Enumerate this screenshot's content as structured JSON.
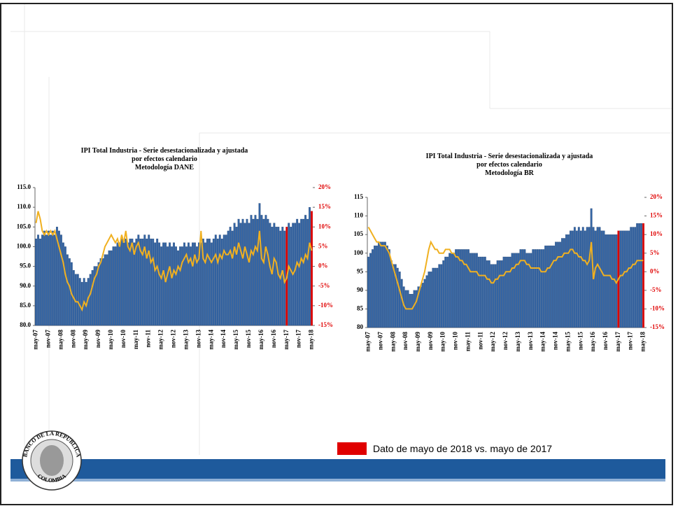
{
  "chart_data": [
    {
      "type": "bar",
      "title": [
        "IPI Total Industria - Serie desestacionalizada y ajustada",
        "por efectos calendario",
        "Metodología DANE"
      ],
      "categories": [
        "may-07",
        null,
        null,
        null,
        null,
        null,
        "nov-07",
        null,
        null,
        null,
        null,
        null,
        "may-08",
        null,
        null,
        null,
        null,
        null,
        "nov-08",
        null,
        null,
        null,
        null,
        null,
        "may-09",
        null,
        null,
        null,
        null,
        null,
        "nov-09",
        null,
        null,
        null,
        null,
        null,
        "may-10",
        null,
        null,
        null,
        null,
        null,
        "nov-10",
        null,
        null,
        null,
        null,
        null,
        "may-11",
        null,
        null,
        null,
        null,
        null,
        "nov-11",
        null,
        null,
        null,
        null,
        null,
        "may-12",
        null,
        null,
        null,
        null,
        null,
        "nov-12",
        null,
        null,
        null,
        null,
        null,
        "may-13",
        null,
        null,
        null,
        null,
        null,
        "nov-13",
        null,
        null,
        null,
        null,
        null,
        "may-14",
        null,
        null,
        null,
        null,
        null,
        "nov-14",
        null,
        null,
        null,
        null,
        null,
        "may-15",
        null,
        null,
        null,
        null,
        null,
        "nov-15",
        null,
        null,
        null,
        null,
        null,
        "may-16",
        null,
        null,
        null,
        null,
        null,
        "nov-16",
        null,
        null,
        null,
        null,
        null,
        "may-17",
        null,
        null,
        null,
        null,
        null,
        "nov-17",
        null,
        null,
        null,
        null,
        null,
        "may-18"
      ],
      "series": [
        {
          "color": "#3465a4",
          "highlight_color": "#d80000",
          "highlight_indices": [
            120,
            132
          ],
          "axis": "y",
          "values": [
            102,
            103,
            102,
            103,
            104,
            103,
            104,
            103,
            104,
            103,
            105,
            104,
            103,
            101,
            100,
            98,
            97,
            96,
            94,
            93,
            93,
            92,
            91,
            92,
            91,
            92,
            93,
            94,
            95,
            95,
            96,
            97,
            97,
            98,
            98,
            99,
            99,
            100,
            100,
            101,
            101,
            102,
            101,
            102,
            101,
            102,
            102,
            101,
            102,
            103,
            102,
            102,
            103,
            102,
            103,
            102,
            102,
            101,
            102,
            101,
            100,
            101,
            101,
            100,
            101,
            100,
            101,
            100,
            99,
            100,
            100,
            101,
            100,
            101,
            100,
            101,
            101,
            100,
            101,
            101,
            102,
            101,
            102,
            102,
            101,
            102,
            103,
            102,
            103,
            102,
            103,
            103,
            104,
            105,
            104,
            106,
            105,
            107,
            106,
            107,
            106,
            107,
            106,
            108,
            107,
            108,
            107,
            111,
            108,
            107,
            108,
            107,
            106,
            105,
            106,
            105,
            105,
            104,
            105,
            104,
            105,
            106,
            105,
            106,
            106,
            107,
            106,
            107,
            107,
            108,
            107,
            110,
            109
          ]
        },
        {
          "color": "#f0b020",
          "axis": "y2",
          "values": [
            11,
            14,
            12,
            9,
            8,
            9,
            8,
            9,
            8,
            9,
            7,
            5,
            3,
            1,
            -2,
            -4,
            -5,
            -7,
            -8,
            -9,
            -9,
            -10,
            -11,
            -9,
            -10,
            -8,
            -7,
            -5,
            -3,
            -2,
            0,
            1,
            3,
            5,
            6,
            7,
            8,
            7,
            6,
            7,
            5,
            8,
            6,
            9,
            5,
            4,
            6,
            3,
            5,
            6,
            4,
            3,
            5,
            2,
            4,
            1,
            2,
            -1,
            0,
            -2,
            -3,
            -1,
            -4,
            -2,
            0,
            -3,
            -1,
            -2,
            0,
            -1,
            1,
            2,
            3,
            1,
            2,
            0,
            3,
            1,
            2,
            9,
            2,
            1,
            3,
            2,
            1,
            2,
            3,
            1,
            3,
            2,
            4,
            3,
            3,
            4,
            2,
            5,
            3,
            6,
            4,
            2,
            5,
            3,
            1,
            4,
            3,
            5,
            4,
            9,
            2,
            1,
            5,
            3,
            0,
            -2,
            2,
            1,
            -2,
            -3,
            -1,
            -4,
            -3,
            0,
            -1,
            -2,
            -1,
            1,
            0,
            2,
            1,
            3,
            2,
            6,
            4
          ]
        }
      ],
      "ylim": [
        80,
        115
      ],
      "yticks": [
        {
          "value": 80,
          "label": "80.0"
        },
        {
          "value": 85,
          "label": "85.0"
        },
        {
          "value": 90,
          "label": "90.0"
        },
        {
          "value": 95,
          "label": "95.0"
        },
        {
          "value": 100,
          "label": "100.0"
        },
        {
          "value": 105,
          "label": "105.0"
        },
        {
          "value": 110,
          "label": "110.0"
        },
        {
          "value": 115,
          "label": "115.0"
        }
      ],
      "y2lim": [
        -15,
        20
      ],
      "y2ticks": [
        {
          "value": -15,
          "label": "-15%"
        },
        {
          "value": -10,
          "label": "-10%"
        },
        {
          "value": -5,
          "label": "-5%"
        },
        {
          "value": 0,
          "label": "0%"
        },
        {
          "value": 5,
          "label": "5%"
        },
        {
          "value": 10,
          "label": "10%"
        },
        {
          "value": 15,
          "label": "15%"
        },
        {
          "value": 20,
          "label": "20%"
        }
      ]
    },
    {
      "type": "bar",
      "title": [
        "IPI Total Industria - Serie desestacionalizada y ajustada",
        "por efectos calendario",
        "Metodología BR"
      ],
      "categories": [
        "may-07",
        null,
        null,
        null,
        null,
        null,
        "nov-07",
        null,
        null,
        null,
        null,
        null,
        "may-08",
        null,
        null,
        null,
        null,
        null,
        "nov-08",
        null,
        null,
        null,
        null,
        null,
        "may-09",
        null,
        null,
        null,
        null,
        null,
        "nov-09",
        null,
        null,
        null,
        null,
        null,
        "may-10",
        null,
        null,
        null,
        null,
        null,
        "nov-10",
        null,
        null,
        null,
        null,
        null,
        "may-11",
        null,
        null,
        null,
        null,
        null,
        "nov-11",
        null,
        null,
        null,
        null,
        null,
        "may-12",
        null,
        null,
        null,
        null,
        null,
        "nov-12",
        null,
        null,
        null,
        null,
        null,
        "may-13",
        null,
        null,
        null,
        null,
        null,
        "nov-13",
        null,
        null,
        null,
        null,
        null,
        "may-14",
        null,
        null,
        null,
        null,
        null,
        "nov-14",
        null,
        null,
        null,
        null,
        null,
        "may-15",
        null,
        null,
        null,
        null,
        null,
        "nov-15",
        null,
        null,
        null,
        null,
        null,
        "may-16",
        null,
        null,
        null,
        null,
        null,
        "nov-16",
        null,
        null,
        null,
        null,
        null,
        "may-17",
        null,
        null,
        null,
        null,
        null,
        "nov-17",
        null,
        null,
        null,
        null,
        null,
        "may-18"
      ],
      "series": [
        {
          "color": "#3465a4",
          "highlight_color": "#d80000",
          "highlight_indices": [
            120,
            132
          ],
          "axis": "y",
          "values": [
            99,
            100,
            101,
            102,
            102,
            103,
            103,
            103,
            103,
            102,
            101,
            98,
            97,
            97,
            96,
            95,
            93,
            91,
            90,
            90,
            89,
            89,
            90,
            90,
            91,
            91,
            92,
            93,
            94,
            95,
            95,
            96,
            96,
            96,
            97,
            97,
            98,
            99,
            99,
            100,
            100,
            100,
            101,
            101,
            101,
            101,
            101,
            101,
            101,
            100,
            100,
            100,
            100,
            99,
            99,
            99,
            99,
            98,
            98,
            97,
            97,
            97,
            98,
            98,
            98,
            99,
            99,
            99,
            99,
            100,
            100,
            100,
            100,
            101,
            101,
            101,
            100,
            100,
            100,
            101,
            101,
            101,
            101,
            101,
            101,
            102,
            102,
            102,
            102,
            102,
            103,
            103,
            103,
            104,
            104,
            105,
            105,
            106,
            106,
            107,
            106,
            107,
            106,
            107,
            106,
            107,
            107,
            112,
            107,
            106,
            107,
            107,
            106,
            106,
            105,
            105,
            105,
            105,
            105,
            105,
            106,
            106,
            106,
            106,
            106,
            106,
            107,
            107,
            107,
            108,
            108,
            108,
            108
          ]
        },
        {
          "color": "#f0b020",
          "axis": "y2",
          "values": [
            12,
            11,
            10,
            9,
            8,
            8,
            7,
            7,
            7,
            6,
            5,
            3,
            1,
            -1,
            -3,
            -5,
            -7,
            -9,
            -10,
            -10,
            -10,
            -10,
            -9,
            -8,
            -6,
            -4,
            -2,
            0,
            3,
            6,
            8,
            7,
            6,
            6,
            5,
            5,
            5,
            6,
            6,
            6,
            5,
            5,
            4,
            4,
            3,
            3,
            2,
            2,
            1,
            0,
            0,
            0,
            0,
            -1,
            -1,
            -1,
            -1,
            -2,
            -2,
            -3,
            -3,
            -2,
            -2,
            -1,
            -1,
            -1,
            0,
            0,
            0,
            1,
            1,
            2,
            2,
            3,
            3,
            3,
            2,
            2,
            1,
            1,
            1,
            1,
            1,
            0,
            0,
            0,
            1,
            1,
            2,
            3,
            3,
            4,
            4,
            4,
            5,
            5,
            5,
            6,
            6,
            5,
            5,
            4,
            4,
            3,
            3,
            2,
            3,
            8,
            -2,
            1,
            2,
            1,
            0,
            -1,
            -1,
            -1,
            -1,
            -2,
            -2,
            -3,
            -2,
            -1,
            -1,
            0,
            0,
            1,
            1,
            2,
            2,
            3,
            3,
            3,
            3
          ]
        }
      ],
      "ylim": [
        80,
        115
      ],
      "yticks": [
        80,
        85,
        90,
        95,
        100,
        105,
        110,
        115
      ],
      "y2lim": [
        -15,
        20
      ],
      "y2ticks": [
        {
          "value": -15,
          "label": "-15%"
        },
        {
          "value": -10,
          "label": "-10%"
        },
        {
          "value": -5,
          "label": "-5%"
        },
        {
          "value": 0,
          "label": "0%"
        },
        {
          "value": 5,
          "label": "5%"
        },
        {
          "value": 10,
          "label": "10%"
        },
        {
          "value": 15,
          "label": "15%"
        },
        {
          "value": 20,
          "label": "20%"
        }
      ]
    }
  ],
  "legend": {
    "label": "Dato de mayo de 2018 vs. mayo de 2017",
    "color": "#e00000"
  },
  "logo": {
    "top": "BANCO DE LA REPUBLICA",
    "bottom": "COLOMBIA"
  }
}
